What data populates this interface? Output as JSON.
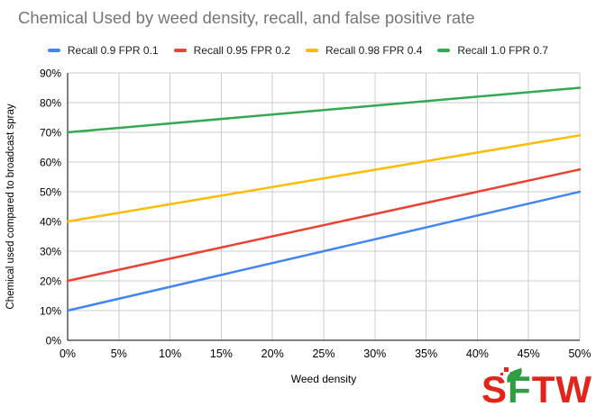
{
  "chart_data": {
    "type": "line",
    "title": "Chemical Used by weed density, recall, and false positive rate",
    "xlabel": "Weed density",
    "ylabel": "Chemical used compared to broadcast spray",
    "xlim": [
      0,
      50
    ],
    "ylim": [
      0,
      90
    ],
    "grid": true,
    "legend_position": "top",
    "x_ticks": [
      {
        "value": 0,
        "label": "0%"
      },
      {
        "value": 5,
        "label": "5%"
      },
      {
        "value": 10,
        "label": "10%"
      },
      {
        "value": 15,
        "label": "15%"
      },
      {
        "value": 20,
        "label": "20%"
      },
      {
        "value": 25,
        "label": "25%"
      },
      {
        "value": 30,
        "label": "30%"
      },
      {
        "value": 35,
        "label": "35%"
      },
      {
        "value": 40,
        "label": "40%"
      },
      {
        "value": 45,
        "label": "45%"
      },
      {
        "value": 50,
        "label": "50%"
      }
    ],
    "y_ticks": [
      {
        "value": 0,
        "label": "0%"
      },
      {
        "value": 10,
        "label": "10%"
      },
      {
        "value": 20,
        "label": "20%"
      },
      {
        "value": 30,
        "label": "30%"
      },
      {
        "value": 40,
        "label": "40%"
      },
      {
        "value": 50,
        "label": "50%"
      },
      {
        "value": 60,
        "label": "60%"
      },
      {
        "value": 70,
        "label": "70%"
      },
      {
        "value": 80,
        "label": "80%"
      },
      {
        "value": 90,
        "label": "90%"
      }
    ],
    "series": [
      {
        "name": "Recall 0.9 FPR 0.1",
        "color": "#4285F4",
        "points": [
          [
            0,
            10
          ],
          [
            50,
            50
          ]
        ]
      },
      {
        "name": "Recall 0.95 FPR 0.2",
        "color": "#EA4335",
        "points": [
          [
            0,
            20
          ],
          [
            50,
            57.5
          ]
        ]
      },
      {
        "name": "Recall 0.98 FPR 0.4",
        "color": "#FBBC04",
        "points": [
          [
            0,
            40
          ],
          [
            50,
            69
          ]
        ]
      },
      {
        "name": "Recall 1.0 FPR 0.7",
        "color": "#34A853",
        "points": [
          [
            0,
            70
          ],
          [
            50,
            85
          ]
        ]
      }
    ]
  },
  "colors": {
    "title": "#757575",
    "grid": "#CCCCCC",
    "axis": "#000000",
    "tick_label": "#000000",
    "background": "#FFFFFF"
  },
  "logo": {
    "letter_s": "S",
    "letter_f": "F",
    "letter_tw": "TW",
    "red": "#E1251B",
    "green": "#2F9E44"
  }
}
